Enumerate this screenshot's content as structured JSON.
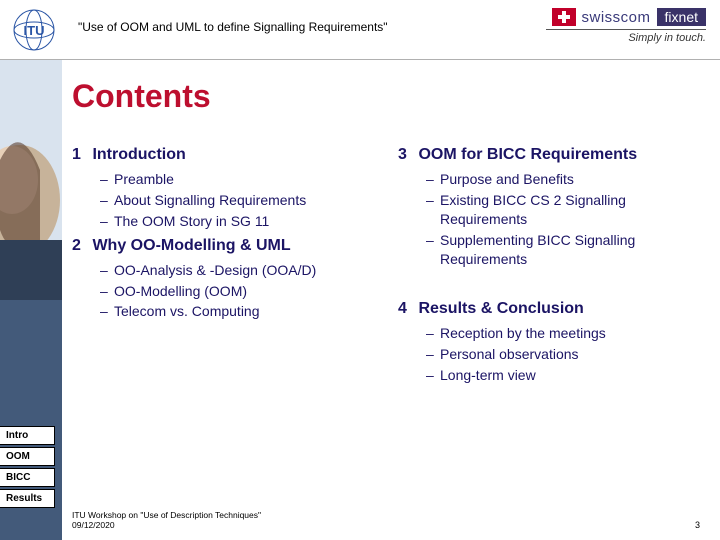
{
  "header": {
    "title": "\"Use of OOM and UML to define Signalling Requirements\"",
    "swisscom": "swisscom",
    "fixnet": "fixnet",
    "tagline": "Simply in touch."
  },
  "page_title": "Contents",
  "left_sections": [
    {
      "num": "1",
      "title": "Introduction",
      "items": [
        "Preamble",
        "About Signalling Requirements",
        "The OOM Story in SG 11"
      ]
    },
    {
      "num": "2",
      "title": "Why OO-Modelling & UML",
      "items": [
        "OO-Analysis & -Design (OOA/D)",
        "OO-Modelling (OOM)",
        "Telecom vs. Computing"
      ]
    }
  ],
  "right_sections": [
    {
      "num": "3",
      "title": "OOM for BICC Requirements",
      "items": [
        "Purpose and Benefits",
        "Existing BICC CS 2 Signalling Requirements",
        "Supplementing BICC Signalling Requirements"
      ]
    },
    {
      "num": "4",
      "title": "Results & Conclusion",
      "items": [
        "Reception by the meetings",
        "Personal observations",
        "Long-term view"
      ]
    }
  ],
  "tabs": [
    "Intro",
    "OOM",
    "BICC",
    "Results"
  ],
  "footer": {
    "line1": "ITU Workshop on \"Use of Description Techniques\"",
    "line2": "09/12/2020",
    "page": "3"
  },
  "colors": {
    "accent_red": "#bd0f2f",
    "body_blue": "#1b1464"
  }
}
